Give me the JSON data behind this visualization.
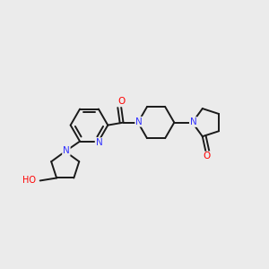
{
  "bg_color": "#EBEBEB",
  "bond_color": "#1a1a1a",
  "nitrogen_color": "#3333FF",
  "oxygen_color": "#FF0000",
  "lw": 1.4,
  "dbo": 0.013,
  "figsize": [
    3.0,
    3.0
  ],
  "dpi": 100,
  "xlim": [
    0.0,
    1.0
  ],
  "ylim": [
    0.0,
    1.0
  ]
}
